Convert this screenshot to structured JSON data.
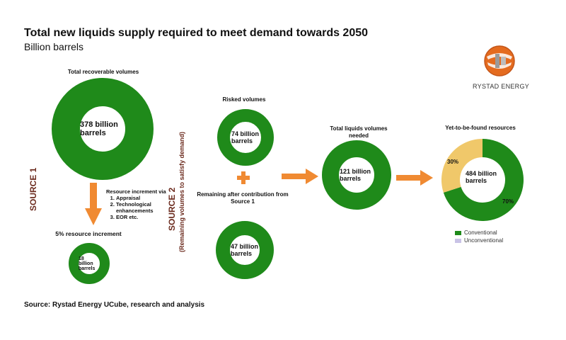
{
  "header": {
    "title": "Total new liquids supply required to meet demand towards 2050",
    "subtitle": "Billion barrels"
  },
  "logo": {
    "text": "RYSTAD ENERGY",
    "icon": "globe-logo-icon"
  },
  "source1": {
    "label": "SOURCE 1",
    "total_label": "Total recoverable volumes",
    "total_value": "378 billion barrels",
    "increment_heading": "Resource increment via",
    "increment_items": [
      "Appraisal",
      "Technological enhancements",
      "EOR etc."
    ],
    "increment_label": "5% resource increment",
    "increment_value": "18 billion barrels"
  },
  "source2": {
    "label": "SOURCE 2",
    "sublabel": "(Remaining volumes to satisfy demand)",
    "risked_label": "Risked volumes",
    "risked_value": "74 billion barrels",
    "remaining_label": "Remaining after contribution from Source 1",
    "remaining_value": "47 billion barrels"
  },
  "needed": {
    "label": "Total liquids volumes needed",
    "value": "121 billion barrels"
  },
  "ytf": {
    "label": "Yet-to-be-found resources",
    "value": "484 billion barrels",
    "pct_conventional": "70%",
    "pct_unconventional": "30%",
    "share_conventional": 0.7,
    "share_unconventional": 0.3
  },
  "legend": {
    "conventional": "Conventional",
    "unconventional": "Unconventional"
  },
  "colors": {
    "green": "#1f8a1a",
    "tan": "#f0c86a",
    "arrow": "#f08a32",
    "source": "#6b2a1d",
    "unconventional_swatch": "#c9c3e6"
  },
  "footer": {
    "source": "Source: Rystad Energy UCube, research and analysis"
  }
}
